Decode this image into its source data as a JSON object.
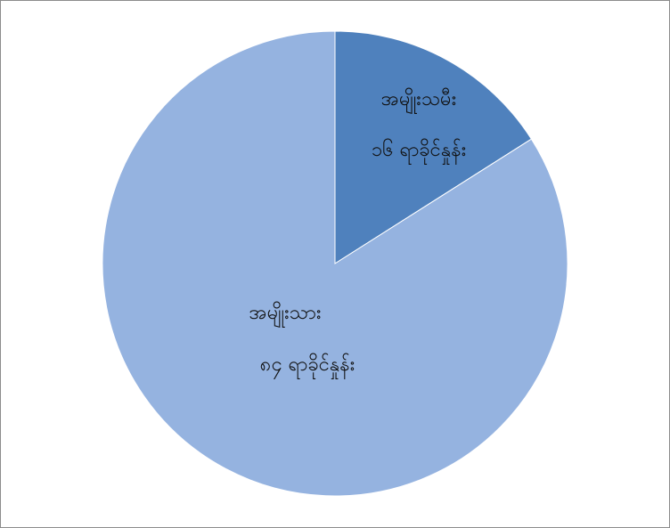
{
  "chart_data": {
    "type": "pie",
    "title": "",
    "start_angle_deg": 0,
    "slices": [
      {
        "label": "အမျိုးသမီး",
        "value_text": "၁၆ ရာခိုင်နှုန်း",
        "value": 16,
        "color": "#4f81bd"
      },
      {
        "label": "အမျိုးသား",
        "value_text": "၈၄ ရာခိုင်နှုန်း",
        "value": 84,
        "color": "#95b3e0"
      }
    ],
    "legend": "none"
  }
}
